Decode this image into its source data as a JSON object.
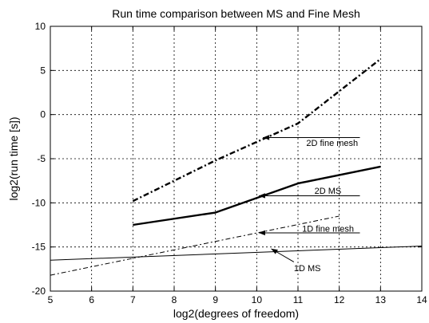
{
  "chart_data": {
    "type": "line",
    "title": "Run time comparison between MS and Fine Mesh",
    "xlabel": "log2(degrees of freedom)",
    "ylabel": "log2(run time [s])",
    "xlim": [
      5,
      14
    ],
    "ylim": [
      -20,
      10
    ],
    "xticks": [
      5,
      6,
      7,
      8,
      9,
      10,
      11,
      12,
      13,
      14
    ],
    "yticks": [
      -20,
      -15,
      -10,
      -5,
      0,
      5,
      10
    ],
    "grid": true,
    "legend": "none",
    "series": [
      {
        "name": "2D fine mesh",
        "style": "dashdot",
        "weight": "bold",
        "color": "#000000",
        "x": [
          7,
          9,
          11,
          13
        ],
        "y": [
          -9.8,
          -5.2,
          -1.0,
          6.3
        ]
      },
      {
        "name": "2D MS",
        "style": "solid",
        "weight": "bold",
        "color": "#000000",
        "x": [
          7,
          9,
          11,
          13
        ],
        "y": [
          -12.5,
          -11.1,
          -7.8,
          -5.9
        ]
      },
      {
        "name": "1D fine mesh",
        "style": "dashdot",
        "weight": "thin",
        "color": "#000000",
        "x": [
          5,
          12
        ],
        "y": [
          -18.2,
          -11.5
        ]
      },
      {
        "name": "1D MS",
        "style": "solid",
        "weight": "thin",
        "color": "#000000",
        "x": [
          5,
          14
        ],
        "y": [
          -16.5,
          -14.9
        ]
      }
    ],
    "annotations": [
      {
        "text": "2D fine mesh",
        "label_x": 11.2,
        "label_y": -3.2,
        "line_from": [
          12.5,
          -2.6
        ],
        "arrow_to": [
          10.15,
          -2.6
        ]
      },
      {
        "text": "2D MS",
        "label_x": 11.4,
        "label_y": -8.6,
        "line_from": [
          12.5,
          -9.2
        ],
        "arrow_to": [
          10.05,
          -9.2
        ]
      },
      {
        "text": "1D fine mesh",
        "label_x": 11.1,
        "label_y": -12.9,
        "line_from": [
          12.5,
          -13.4
        ],
        "arrow_to": [
          10.05,
          -13.4
        ]
      },
      {
        "text": "1D MS",
        "label_x": 10.9,
        "label_y": -17.4,
        "line_from": [
          10.9,
          -16.7
        ],
        "arrow_to": [
          10.35,
          -15.2
        ]
      }
    ]
  }
}
